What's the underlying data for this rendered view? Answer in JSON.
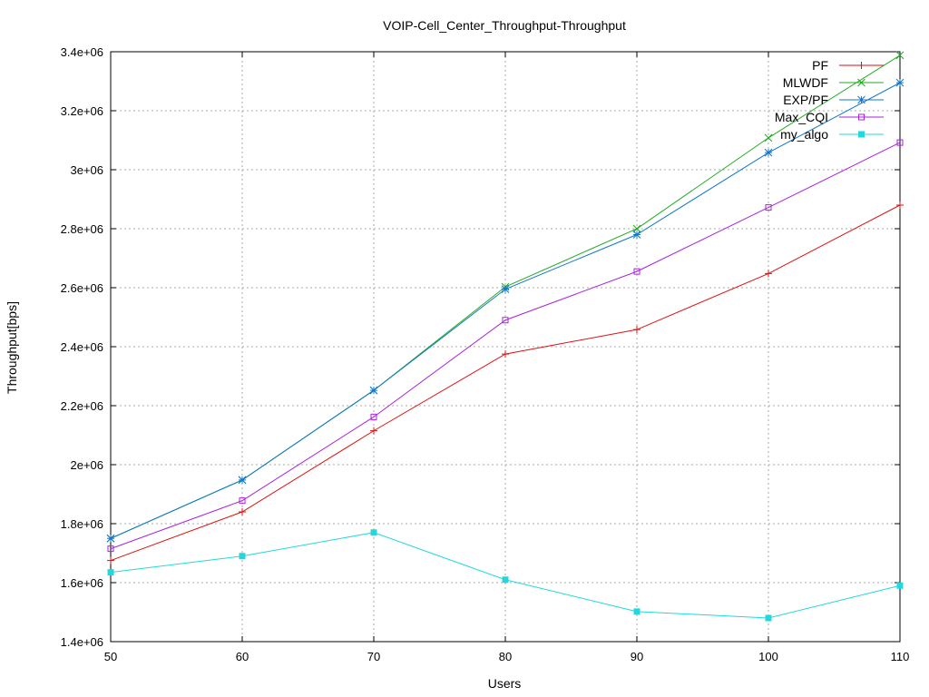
{
  "chart_data": {
    "type": "line",
    "title": "VOIP-Cell_Center_Throughput-Throughput",
    "xlabel": "Users",
    "ylabel": "Throughput[bps]",
    "xlim": [
      50,
      110
    ],
    "ylim": [
      1400000,
      3400000
    ],
    "x_ticks": [
      50,
      60,
      70,
      80,
      90,
      100,
      110
    ],
    "y_ticks": [
      1400000,
      1600000,
      1800000,
      2000000,
      2200000,
      2400000,
      2600000,
      2800000,
      3000000,
      3200000,
      3400000
    ],
    "x_tick_labels": [
      "50",
      "60",
      "70",
      "80",
      "90",
      "100",
      "110"
    ],
    "y_tick_labels": [
      "1.4e+06",
      "1.6e+06",
      "1.8e+06",
      "2e+06",
      "2.2e+06",
      "2.4e+06",
      "2.6e+06",
      "2.8e+06",
      "3e+06",
      "3.2e+06",
      "3.4e+06"
    ],
    "grid": true,
    "legend_position": "top-right",
    "x": [
      50,
      60,
      70,
      80,
      90,
      100,
      110
    ],
    "series": [
      {
        "name": "PF",
        "color": "#dd1111",
        "marker": "plus",
        "values": [
          1675000,
          1840000,
          2115000,
          2375000,
          2458000,
          2648000,
          2880000
        ]
      },
      {
        "name": "MLWDF",
        "color": "#22aa22",
        "marker": "cross",
        "values": [
          1750000,
          1948000,
          2252000,
          2603000,
          2800000,
          3108000,
          3388000
        ]
      },
      {
        "name": "EXP/PF",
        "color": "#1177cc",
        "marker": "star",
        "values": [
          1750000,
          1948000,
          2252000,
          2595000,
          2780000,
          3058000,
          3295000
        ]
      },
      {
        "name": "Max_CQI",
        "color": "#aa22dd",
        "marker": "square",
        "values": [
          1715000,
          1878000,
          2162000,
          2490000,
          2655000,
          2872000,
          3092000
        ]
      },
      {
        "name": "my_algo",
        "color": "#22d8dd",
        "marker": "filled-square",
        "values": [
          1635000,
          1690000,
          1770000,
          1610000,
          1502000,
          1480000,
          1590000
        ]
      }
    ]
  }
}
